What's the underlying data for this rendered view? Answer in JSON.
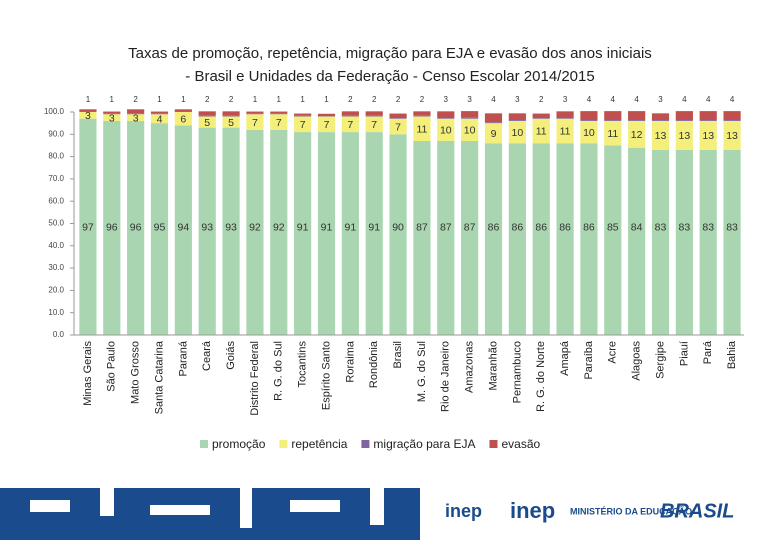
{
  "chart_data": {
    "type": "stacked_bar",
    "title": "Taxas de promoção, repetência, migração para EJA e evasão dos anos iniciais",
    "subtitle": "- Brasil e Unidades da Federação - Censo Escolar 2014/2015",
    "categories": [
      "Minas Gerais",
      "São Paulo",
      "Mato Grosso",
      "Santa Catarina",
      "Paraná",
      "Ceará",
      "Goiás",
      "Distrito Federal",
      "R. G. do Sul",
      "Tocantins",
      "Espírito Santo",
      "Roraima",
      "Rondônia",
      "Brasil",
      "M. G. do Sul",
      "Rio de Janeiro",
      "Amazonas",
      "Maranhão",
      "Pernambuco",
      "R. G. do Norte",
      "Amapá",
      "Paraíba",
      "Acre",
      "Alagoas",
      "Sergipe",
      "Piauí",
      "Pará",
      "Bahia"
    ],
    "series": [
      {
        "name": "promoção",
        "color": "#a9d6b0",
        "values": [
          97,
          96,
          96,
          95,
          94,
          93,
          93,
          92,
          92,
          91,
          91,
          91,
          91,
          90,
          87,
          87,
          87,
          86,
          86,
          86,
          86,
          86,
          85,
          84,
          83,
          83,
          83,
          83
        ]
      },
      {
        "name": "repetência",
        "color": "#f3ef7a",
        "values": [
          3,
          3,
          3,
          4,
          6,
          5,
          5,
          7,
          7,
          7,
          7,
          7,
          7,
          7,
          11,
          10,
          10,
          9,
          10,
          11,
          11,
          10,
          11,
          12,
          13,
          13,
          13,
          13
        ]
      },
      {
        "name": "migração para EJA",
        "color": "#8064a2",
        "values": [
          0.2,
          0.2,
          0.2,
          0.2,
          0.2,
          0.3,
          0.3,
          0.2,
          0.2,
          0.3,
          0.2,
          0.3,
          0.3,
          0.3,
          0.3,
          0.3,
          0.4,
          0.4,
          0.4,
          0.3,
          0.3,
          0.4,
          0.4,
          0.4,
          0.4,
          0.4,
          0.4,
          0.4
        ]
      },
      {
        "name": "evasão",
        "color": "#c0504d",
        "values": [
          1,
          1,
          2,
          1,
          1,
          2,
          2,
          1,
          1,
          1,
          1,
          2,
          2,
          2,
          2,
          3,
          3,
          4,
          3,
          2,
          3,
          4,
          4,
          4,
          3,
          4,
          4,
          4
        ]
      }
    ],
    "ylim": [
      0,
      100
    ],
    "yticks": [
      {
        "value": 0,
        "label": "0.0"
      },
      {
        "value": 10,
        "label": "10.0"
      },
      {
        "value": 20,
        "label": "20.0"
      },
      {
        "value": 30,
        "label": "30.0"
      },
      {
        "value": 40,
        "label": "40.0"
      },
      {
        "value": 50,
        "label": "50.0"
      },
      {
        "value": 60,
        "label": "60.0"
      },
      {
        "value": 70,
        "label": "70.0"
      },
      {
        "value": 80,
        "label": "80.0"
      },
      {
        "value": 90,
        "label": "90.0"
      },
      {
        "value": 100,
        "label": "100.0"
      }
    ],
    "labeled_series": [
      0,
      1,
      3
    ]
  },
  "footer": {
    "inep": "inep",
    "ministry": "MINISTÉRIO DA EDUCAÇÃO",
    "brasil": "BRASIL"
  }
}
